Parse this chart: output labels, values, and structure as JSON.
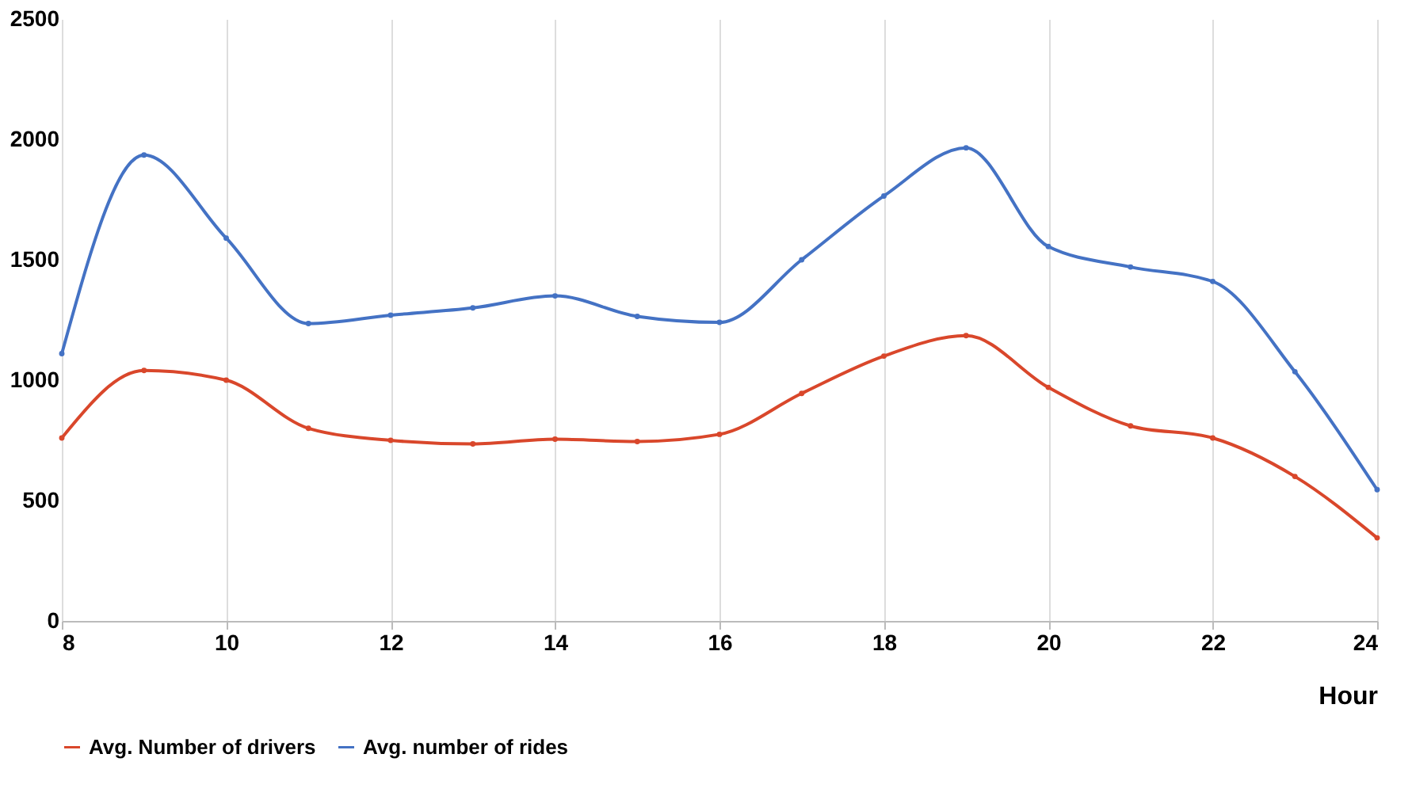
{
  "chart_data": {
    "type": "line",
    "xlabel": "Hour",
    "x": [
      8,
      9,
      10,
      11,
      12,
      13,
      14,
      15,
      16,
      17,
      18,
      19,
      20,
      21,
      22,
      23,
      24
    ],
    "series": [
      {
        "name": "Avg. Number of drivers",
        "color": "#d9472b",
        "values": [
          760,
          1040,
          1000,
          800,
          750,
          735,
          755,
          745,
          775,
          945,
          1100,
          1185,
          970,
          810,
          760,
          600,
          345
        ]
      },
      {
        "name": "Avg. number of rides",
        "color": "#4472c4",
        "values": [
          1110,
          1935,
          1590,
          1235,
          1270,
          1300,
          1350,
          1265,
          1240,
          1500,
          1765,
          1965,
          1555,
          1470,
          1410,
          1035,
          545
        ]
      }
    ],
    "xlim": [
      8,
      24
    ],
    "xticks": [
      8,
      10,
      12,
      14,
      16,
      18,
      20,
      22,
      24
    ],
    "ylim": [
      0,
      2500
    ],
    "yticks": [
      0,
      500,
      1000,
      1500,
      2000,
      2500
    ],
    "grid": "x",
    "legend": "bottom",
    "marker": "circle",
    "line_style": "solid"
  }
}
